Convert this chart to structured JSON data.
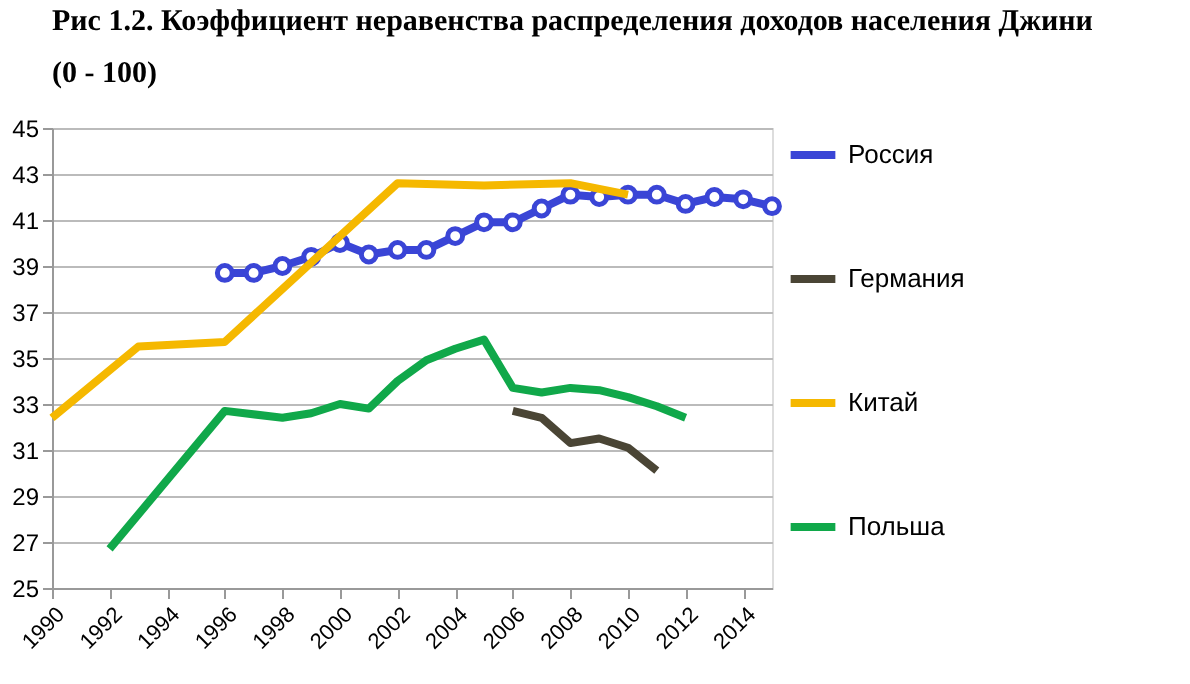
{
  "chart_data": {
    "type": "line",
    "title": "Рис 1.2. Коэффициент неравенства распределения доходов населения Джини (0 - 100)",
    "xlim": [
      1990,
      2015
    ],
    "xticks": [
      1990,
      1992,
      1994,
      1996,
      1998,
      2000,
      2002,
      2004,
      2006,
      2008,
      2010,
      2012,
      2014
    ],
    "ylim": [
      25,
      45
    ],
    "yticks": [
      25,
      27,
      29,
      31,
      33,
      35,
      37,
      39,
      41,
      43,
      45
    ],
    "grid": "y",
    "legend": "right",
    "series": [
      {
        "name": "Россия",
        "color": "#3a45d6",
        "marker": "circle",
        "x": [
          1996,
          1997,
          1998,
          1999,
          2000,
          2001,
          2002,
          2003,
          2004,
          2005,
          2006,
          2007,
          2008,
          2009,
          2010,
          2011,
          2012,
          2013,
          2014,
          2015
        ],
        "values": [
          38.7,
          38.7,
          39.0,
          39.4,
          40.0,
          39.5,
          39.7,
          39.7,
          40.3,
          40.9,
          40.9,
          41.5,
          42.1,
          42.0,
          42.1,
          42.1,
          41.7,
          42.0,
          41.9,
          41.6
        ]
      },
      {
        "name": "Германия",
        "color": "#4a4535",
        "marker": "none",
        "x": [
          2006,
          2007,
          2008,
          2009,
          2010,
          2011
        ],
        "values": [
          32.7,
          32.4,
          31.3,
          31.5,
          31.1,
          30.1
        ]
      },
      {
        "name": "Китай",
        "color": "#f5b800",
        "marker": "none",
        "x": [
          1990,
          1993,
          1996,
          2002,
          2005,
          2008,
          2010
        ],
        "values": [
          32.4,
          35.5,
          35.7,
          42.6,
          42.5,
          42.6,
          42.1
        ]
      },
      {
        "name": "Польша",
        "color": "#10a84a",
        "marker": "none",
        "x": [
          1992,
          1996,
          1998,
          1999,
          2000,
          2001,
          2002,
          2003,
          2004,
          2005,
          2006,
          2007,
          2008,
          2009,
          2010,
          2011,
          2012
        ],
        "values": [
          26.7,
          32.7,
          32.4,
          32.6,
          33.0,
          32.8,
          34.0,
          34.9,
          35.4,
          35.8,
          33.7,
          33.5,
          33.7,
          33.6,
          33.3,
          32.9,
          32.4
        ]
      }
    ]
  }
}
